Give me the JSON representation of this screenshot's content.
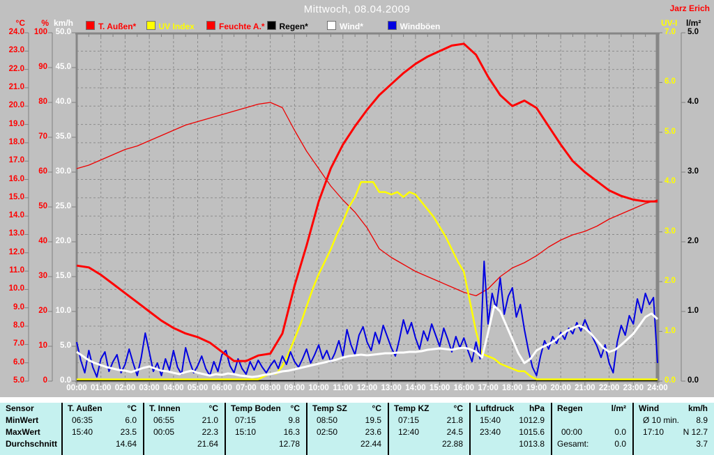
{
  "header": {
    "title": "Mittwoch, 08.04.2009",
    "station": "Jarz Erich"
  },
  "legend": [
    {
      "label": "T. Außen*",
      "swatch": "#ff0000",
      "text_color": "#ff0000"
    },
    {
      "label": "UV Index",
      "swatch": "#ffff00",
      "text_color": "#ffff00"
    },
    {
      "label": "Feuchte A.*",
      "swatch": "#ff0000",
      "text_color": "#ff0000"
    },
    {
      "label": "Regen*",
      "swatch": "#000000",
      "text_color": "#000000"
    },
    {
      "label": "Wind*",
      "swatch": "#ffffff",
      "text_color": "#ffffff"
    },
    {
      "label": "Windböen",
      "swatch": "#0000e0",
      "text_color": "#ffffff"
    }
  ],
  "axes": {
    "left": [
      {
        "name": "°C",
        "color": "#ff0000",
        "labels": [
          "24.0",
          "23.0",
          "22.0",
          "21.0",
          "20.0",
          "19.0",
          "18.0",
          "17.0",
          "16.0",
          "15.0",
          "14.0",
          "13.0",
          "12.0",
          "11.0",
          "10.0",
          "9.0",
          "8.0",
          "7.0",
          "6.0",
          "5.0"
        ]
      },
      {
        "name": "%",
        "color": "#ff0000",
        "labels": [
          "100",
          "90",
          "80",
          "70",
          "60",
          "50",
          "40",
          "30",
          "20",
          "10",
          "0"
        ]
      },
      {
        "name": "km/h",
        "color": "#ffffff",
        "labels": [
          "50.0",
          "45.0",
          "40.0",
          "35.0",
          "30.0",
          "25.0",
          "20.0",
          "15.0",
          "10.0",
          "5.0",
          "0.0"
        ]
      }
    ],
    "right": [
      {
        "name": "UV-I",
        "color": "#ffff00",
        "labels": [
          "7.0",
          "6.0",
          "5.0",
          "4.0",
          "3.0",
          "2.0",
          "1.0",
          "0.0"
        ]
      },
      {
        "name": "l/m²",
        "color": "#000000",
        "labels": [
          "5.0",
          "4.0",
          "3.0",
          "2.0",
          "1.0",
          "0.0"
        ]
      }
    ],
    "x": {
      "labels": [
        "00:00",
        "01:00",
        "02:00",
        "03:00",
        "04:00",
        "05:00",
        "06:00",
        "07:00",
        "08:00",
        "09:00",
        "10:00",
        "11:00",
        "12:00",
        "13:00",
        "14:00",
        "15:00",
        "16:00",
        "17:00",
        "18:00",
        "19:00",
        "20:00",
        "21:00",
        "22:00",
        "23:00",
        "24:00"
      ]
    }
  },
  "chart_data": {
    "type": "line",
    "title": "Mittwoch, 08.04.2009",
    "x_axis": {
      "start": "00:00",
      "end": "24:00",
      "grid": true
    },
    "y_axes": [
      {
        "id": "temp_c",
        "label": "°C",
        "color": "#ff0000",
        "min": 5,
        "max": 24,
        "tick_step": 1
      },
      {
        "id": "percent",
        "label": "%",
        "color": "#ff0000",
        "min": 0,
        "max": 100,
        "tick_step": 10
      },
      {
        "id": "kmh",
        "label": "km/h",
        "color": "#ffffff",
        "min": 0,
        "max": 50,
        "tick_step": 5
      },
      {
        "id": "uvi",
        "label": "UV-I",
        "color": "#ffff00",
        "min": 0,
        "max": 7,
        "tick_step": 1
      },
      {
        "id": "lm2",
        "label": "l/m²",
        "color": "#000000",
        "min": 0,
        "max": 5,
        "tick_step": 1
      }
    ],
    "series": [
      {
        "name": "Regen*",
        "axis": "lm2",
        "color": "#000000",
        "width": 1.5,
        "interval_min": 1440,
        "values": [
          0,
          0
        ]
      },
      {
        "name": "Feuchte A.*",
        "axis": "percent",
        "color": "#ee0000",
        "width": 1.3,
        "interval_min": 30,
        "values": [
          61,
          62,
          63.5,
          65,
          66.5,
          67.5,
          69,
          70.5,
          72,
          73.5,
          74.5,
          75.5,
          76.5,
          77.5,
          78.5,
          79.5,
          80,
          78.5,
          72,
          66,
          61,
          56,
          52,
          48.5,
          44,
          38,
          35.5,
          33.5,
          31.5,
          30,
          28.5,
          27,
          25.5,
          24.5,
          26.5,
          30,
          32.5,
          34,
          36,
          38.5,
          40.5,
          42,
          43,
          44.5,
          46.5,
          48,
          49.5,
          51,
          52
        ]
      },
      {
        "name": "UV Index",
        "axis": "uvi",
        "color": "#ffff00",
        "width": 2.5,
        "interval_min": 15,
        "values": [
          0,
          0,
          0,
          0,
          0,
          0,
          0,
          0,
          0,
          0,
          0,
          0,
          0,
          0,
          0,
          0,
          0,
          0,
          0,
          0,
          0,
          0,
          0,
          0,
          0,
          0,
          0,
          0,
          0,
          0,
          0,
          0.1,
          0.15,
          0.15,
          0.3,
          0.55,
          0.85,
          1.15,
          1.5,
          1.85,
          2.15,
          2.4,
          2.65,
          2.95,
          3.2,
          3.5,
          3.7,
          4.0,
          4.0,
          4.0,
          3.8,
          3.8,
          3.75,
          3.8,
          3.7,
          3.8,
          3.75,
          3.6,
          3.45,
          3.3,
          3.1,
          2.9,
          2.65,
          2.4,
          2.2,
          1.6,
          1.0,
          0.55,
          0.5,
          0.45,
          0.35,
          0.3,
          0.25,
          0.2,
          0.2,
          0.1,
          0,
          0,
          0,
          0,
          0,
          0,
          0,
          0,
          0,
          0,
          0,
          0,
          0,
          0,
          0,
          0,
          0,
          0,
          0,
          0,
          0
        ]
      },
      {
        "name": "Windböen",
        "axis": "kmh",
        "color": "#0000e0",
        "width": 2,
        "interval_min": 10,
        "values": [
          5.6,
          3.0,
          1.2,
          4.4,
          2.0,
          0.6,
          3.2,
          4.2,
          1.4,
          2.8,
          3.8,
          1.2,
          2.4,
          4.6,
          2.6,
          0.8,
          3.4,
          6.9,
          4.2,
          1.4,
          2.6,
          0.8,
          3.2,
          1.6,
          4.4,
          2.0,
          1.0,
          4.8,
          2.8,
          1.2,
          2.2,
          3.6,
          1.8,
          0.8,
          2.8,
          1.4,
          3.8,
          4.4,
          2.2,
          1.2,
          3.2,
          1.8,
          1.0,
          2.8,
          1.6,
          3.0,
          2.0,
          1.2,
          2.2,
          3.0,
          1.8,
          3.6,
          2.4,
          4.2,
          2.8,
          2.0,
          3.2,
          4.6,
          2.6,
          3.8,
          5.2,
          3.2,
          4.4,
          2.8,
          4.0,
          5.8,
          3.6,
          7.4,
          5.2,
          3.8,
          6.6,
          7.8,
          5.6,
          4.4,
          7.0,
          5.4,
          8.0,
          6.4,
          4.8,
          3.6,
          6.0,
          8.8,
          6.8,
          8.4,
          6.2,
          4.6,
          7.2,
          5.8,
          8.2,
          6.6,
          5.0,
          7.6,
          6.0,
          4.2,
          6.4,
          4.8,
          6.2,
          4.4,
          2.8,
          5.6,
          3.2,
          17.2,
          8.2,
          12.6,
          10.4,
          14.8,
          9.6,
          12.2,
          13.4,
          9.2,
          11.0,
          7.4,
          4.4,
          2.0,
          0.8,
          3.6,
          5.8,
          4.6,
          6.4,
          5.4,
          7.0,
          6.0,
          7.6,
          6.8,
          8.4,
          7.2,
          8.8,
          7.4,
          6.2,
          5.0,
          3.4,
          5.2,
          2.6,
          1.2,
          5.6,
          8.0,
          6.6,
          9.4,
          8.2,
          11.8,
          9.8,
          12.6,
          11.0,
          12.0,
          2.6
        ]
      },
      {
        "name": "Wind*",
        "axis": "kmh",
        "color": "#ffffff",
        "width": 3,
        "interval_min": 15,
        "values": [
          4.2,
          3.6,
          3.0,
          2.6,
          2.3,
          2.0,
          1.8,
          1.6,
          1.5,
          1.3,
          1.6,
          1.9,
          2.1,
          1.8,
          1.5,
          1.4,
          1.2,
          1.0,
          1.3,
          1.5,
          1.2,
          1.0,
          0.8,
          1.0,
          0.9,
          1.1,
          1.0,
          0.8,
          0.7,
          0.6,
          0.7,
          0.9,
          1.0,
          1.2,
          1.4,
          1.5,
          1.7,
          1.9,
          2.1,
          2.3,
          2.5,
          2.7,
          2.9,
          3.1,
          3.4,
          3.6,
          3.7,
          3.8,
          3.7,
          3.8,
          3.9,
          4.0,
          4.0,
          4.1,
          4.1,
          4.2,
          4.2,
          4.3,
          4.5,
          4.6,
          4.7,
          4.6,
          4.5,
          4.7,
          4.8,
          4.6,
          4.2,
          3.4,
          7.0,
          10.8,
          10.0,
          8.0,
          6.0,
          4.0,
          2.6,
          3.2,
          4.4,
          4.9,
          5.3,
          5.8,
          6.6,
          7.2,
          7.6,
          8.0,
          7.6,
          6.8,
          5.8,
          4.8,
          4.2,
          4.5,
          5.2,
          6.0,
          6.8,
          8.0,
          9.2,
          9.7,
          8.9
        ]
      },
      {
        "name": "T. Außen*",
        "axis": "temp_c",
        "color": "#ff0000",
        "width": 3,
        "interval_min": 30,
        "values": [
          11.3,
          11.2,
          10.8,
          10.3,
          9.8,
          9.3,
          8.8,
          8.3,
          7.9,
          7.6,
          7.4,
          7.1,
          6.6,
          6.1,
          6.1,
          6.4,
          6.5,
          7.6,
          10.2,
          12.4,
          14.8,
          16.6,
          17.9,
          18.9,
          19.8,
          20.6,
          21.2,
          21.8,
          22.3,
          22.7,
          23.0,
          23.3,
          23.4,
          22.8,
          21.6,
          20.6,
          20.0,
          20.3,
          19.9,
          18.9,
          17.9,
          17.0,
          16.4,
          15.9,
          15.4,
          15.1,
          14.9,
          14.8,
          14.8
        ]
      }
    ]
  },
  "table": {
    "row_labels": [
      "Sensor",
      "MinWert",
      "MaxWert",
      "Durchschnitt"
    ],
    "groups": [
      {
        "name": "T. Außen",
        "unit": "°C",
        "min_time": "06:35",
        "min_value": "6.0",
        "max_time": "15:40",
        "max_value": "23.5",
        "avg_label": "",
        "avg_value": "14.64"
      },
      {
        "name": "T. Innen",
        "unit": "°C",
        "min_time": "06:55",
        "min_value": "21.0",
        "max_time": "00:05",
        "max_value": "22.3",
        "avg_label": "",
        "avg_value": "21.64"
      },
      {
        "name": "Temp Boden",
        "unit": "°C",
        "min_time": "07:15",
        "min_value": "9.8",
        "max_time": "15:10",
        "max_value": "16.3",
        "avg_label": "",
        "avg_value": "12.78"
      },
      {
        "name": "Temp SZ",
        "unit": "°C",
        "min_time": "08:50",
        "min_value": "19.5",
        "max_time": "02:50",
        "max_value": "23.6",
        "avg_label": "",
        "avg_value": "22.44"
      },
      {
        "name": "Temp KZ",
        "unit": "°C",
        "min_time": "07:15",
        "min_value": "21.8",
        "max_time": "12:40",
        "max_value": "24.5",
        "avg_label": "",
        "avg_value": "22.88"
      },
      {
        "name": "Luftdruck",
        "unit": "hPa",
        "min_time": "15:40",
        "min_value": "1012.9",
        "max_time": "23:40",
        "max_value": "1015.6",
        "avg_label": "",
        "avg_value": "1013.8"
      },
      {
        "name": "Regen",
        "unit": "l/m²",
        "min_time": "",
        "min_value": "",
        "max_time": "00:00",
        "max_value": "0.0",
        "avg_label": "Gesamt:",
        "avg_value": "0.0"
      },
      {
        "name": "Wind",
        "unit": "km/h",
        "min_time": "Ø 10 min.",
        "min_value": "8.9",
        "max_time": "17:10",
        "max_value": "N 12.7",
        "avg_label": "",
        "avg_value": "3.7"
      }
    ]
  },
  "colors": {
    "background": "#c0c0c0",
    "grid": "#8b8b8b",
    "frame": "#868686",
    "table_background": "#c5f1ef",
    "title": "#ffffff",
    "station": "#ff0000"
  }
}
